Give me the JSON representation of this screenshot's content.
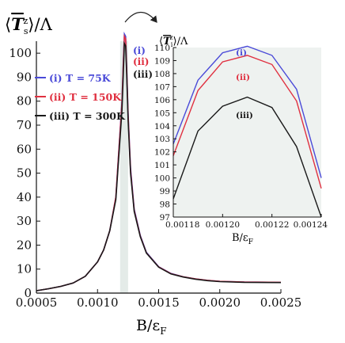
{
  "chart_data": [
    {
      "type": "line",
      "title": "",
      "ylabel_parts": {
        "quantity": "T",
        "sub": "s",
        "sup": "z",
        "divisor": "/Λ"
      },
      "xlabel_parts": {
        "main": "B/ε",
        "sub": "F"
      },
      "xlim": [
        0.0005,
        0.0025
      ],
      "ylim": [
        0,
        105
      ],
      "xticks": [
        0.0005,
        0.001,
        0.0015,
        0.002,
        0.0025
      ],
      "xtick_labels": [
        "0.0005",
        "0.0010",
        "0.0015",
        "0.0020",
        "0.0025"
      ],
      "yticks": [
        0,
        10,
        20,
        30,
        40,
        50,
        60,
        70,
        80,
        90,
        100
      ],
      "ytick_labels": [
        "0",
        "10",
        "20",
        "30",
        "40",
        "50",
        "60",
        "70",
        "80",
        "90",
        "100"
      ],
      "highlight_band": [
        0.001185,
        0.00125
      ],
      "legend": {
        "placement": "upper-left"
      },
      "series": [
        {
          "name": "T = 75K",
          "tag": "(i)",
          "color": "#4a4ad8",
          "x": [
            0.0005,
            0.0006,
            0.0007,
            0.0008,
            0.0009,
            0.001,
            0.00105,
            0.0011,
            0.00115,
            0.0012,
            0.00121,
            0.00122,
            0.00123,
            0.00124,
            0.00125,
            0.00127,
            0.0013,
            0.00135,
            0.0014,
            0.0015,
            0.0016,
            0.0017,
            0.0018,
            0.0019,
            0.002,
            0.0022,
            0.0025
          ],
          "y": [
            1,
            1.8,
            2.8,
            4.2,
            7,
            13,
            18,
            26,
            40,
            80,
            95,
            108,
            107,
            92,
            75,
            52,
            35,
            24,
            17,
            11,
            8.2,
            6.8,
            5.9,
            5.3,
            4.9,
            4.6,
            4.5
          ]
        },
        {
          "name": "T = 150K",
          "tag": "(ii)",
          "color": "#e03040",
          "x": [
            0.0005,
            0.0006,
            0.0007,
            0.0008,
            0.0009,
            0.001,
            0.00105,
            0.0011,
            0.00115,
            0.0012,
            0.00121,
            0.00122,
            0.00123,
            0.00124,
            0.00125,
            0.00127,
            0.0013,
            0.00135,
            0.0014,
            0.0015,
            0.0016,
            0.0017,
            0.0018,
            0.0019,
            0.002,
            0.0022,
            0.0025
          ],
          "y": [
            1,
            1.8,
            2.8,
            4.2,
            7,
            13,
            18,
            26,
            40,
            79,
            94,
            107,
            106,
            91,
            74,
            51,
            34.5,
            23.7,
            16.8,
            10.9,
            8.1,
            6.8,
            5.9,
            5.3,
            4.9,
            4.6,
            4.5
          ]
        },
        {
          "name": "T = 300K",
          "tag": "(iii)",
          "color": "#1a1a1a",
          "x": [
            0.0005,
            0.0006,
            0.0007,
            0.0008,
            0.0009,
            0.001,
            0.00105,
            0.0011,
            0.00115,
            0.0012,
            0.00121,
            0.00122,
            0.00123,
            0.00124,
            0.00125,
            0.00127,
            0.0013,
            0.00135,
            0.0014,
            0.0015,
            0.0016,
            0.0017,
            0.0018,
            0.0019,
            0.002,
            0.0022,
            0.0025
          ],
          "y": [
            1,
            1.8,
            2.8,
            4.2,
            7,
            13,
            18,
            26,
            39,
            76,
            90,
            104,
            103,
            89,
            72,
            50,
            34,
            23.5,
            16.7,
            10.8,
            8,
            6.7,
            5.8,
            5.2,
            4.8,
            4.5,
            4.4
          ]
        }
      ],
      "peak_tags": [
        "(i)",
        "(ii)",
        "(iii)"
      ]
    },
    {
      "type": "line",
      "role": "inset",
      "title_parts": {
        "quantity": "T",
        "sub": "i",
        "sup": "z",
        "divisor": "/Λ"
      },
      "xlabel_parts": {
        "main": "B/ε",
        "sub": "F"
      },
      "xlim": [
        0.00118,
        0.00124
      ],
      "ylim": [
        97,
        110
      ],
      "xticks": [
        0.00118,
        0.0012,
        0.00122,
        0.00124
      ],
      "xtick_labels": [
        "0.00118",
        "0.00120",
        "0.00122",
        "0.00124"
      ],
      "yticks": [
        97,
        98,
        99,
        100,
        101,
        102,
        103,
        104,
        105,
        106,
        107,
        108,
        109,
        110
      ],
      "ytick_labels": [
        "97",
        "98",
        "99",
        "100",
        "101",
        "102",
        "103",
        "104",
        "105",
        "106",
        "107",
        "108",
        "109",
        "110"
      ],
      "background": "#eef2f0",
      "series": [
        {
          "tag": "(i)",
          "color": "#4a4ad8",
          "x": [
            0.00118,
            0.00119,
            0.0012,
            0.00121,
            0.00122,
            0.00123,
            0.00124
          ],
          "y": [
            102.6,
            107.5,
            109.6,
            110.1,
            109.4,
            106.8,
            100
          ]
        },
        {
          "tag": "(ii)",
          "color": "#e03040",
          "x": [
            0.00118,
            0.00119,
            0.0012,
            0.00121,
            0.00122,
            0.00123,
            0.00124
          ],
          "y": [
            101.7,
            106.7,
            108.9,
            109.4,
            108.7,
            105.9,
            99.2
          ]
        },
        {
          "tag": "(iii)",
          "color": "#1a1a1a",
          "x": [
            0.00118,
            0.00119,
            0.0012,
            0.00121,
            0.00122,
            0.00123,
            0.00124
          ],
          "y": [
            98.4,
            103.6,
            105.5,
            106.2,
            105.4,
            102.4,
            97
          ]
        }
      ]
    }
  ]
}
